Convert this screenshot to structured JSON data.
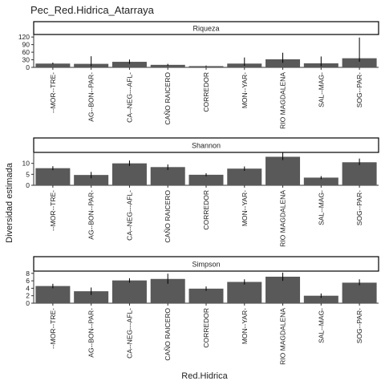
{
  "title": "Pec_Red.Hidrica_Atarraya",
  "xlabel": "Red.Hidrica",
  "ylabel": "Diversidad estimada",
  "colors": {
    "bar": "#595959",
    "error": "#000000",
    "axis": "#333333",
    "strip_bg": "#ffffff",
    "strip_border": "#000000"
  },
  "chart_data": {
    "type": "bar",
    "categories": [
      "--MOR--TRE-",
      "AG--BON--PAR-",
      "CA--NEG---AFL-",
      "CAÑO RAICERO",
      "CORREDOR",
      "MON--YAR-",
      "RIO MAGDALENA",
      "SAL--MAG-",
      "SOG--PAR-"
    ],
    "facets": [
      {
        "strip": "Riqueza",
        "ylim": [
          0,
          130
        ],
        "yticks": [
          0,
          30,
          60,
          90,
          120
        ],
        "values": [
          15,
          14,
          22,
          10,
          5,
          15,
          32,
          16,
          36
        ],
        "error_low": [
          12,
          4,
          14,
          6,
          3,
          6,
          18,
          4,
          22
        ],
        "error_high": [
          19,
          44,
          31,
          14,
          7,
          39,
          58,
          43,
          118
        ]
      },
      {
        "strip": "Shannon",
        "ylim": [
          0,
          15
        ],
        "yticks": [
          0,
          5,
          10
        ],
        "values": [
          7.8,
          4.7,
          10.0,
          8.3,
          4.8,
          7.6,
          13.0,
          3.5,
          10.5
        ],
        "error_low": [
          6.9,
          3.2,
          8.8,
          7.0,
          4.1,
          6.6,
          11.5,
          2.8,
          9.2
        ],
        "error_high": [
          8.7,
          6.1,
          11.3,
          9.5,
          5.5,
          8.6,
          15.0,
          4.2,
          12.2
        ]
      },
      {
        "strip": "Simpson",
        "ylim": [
          0,
          8.6
        ],
        "yticks": [
          0,
          2,
          4,
          6,
          8
        ],
        "values": [
          4.6,
          3.2,
          6.1,
          6.5,
          3.9,
          5.7,
          7.1,
          2.0,
          5.5
        ],
        "error_low": [
          4.0,
          2.2,
          5.5,
          5.2,
          3.3,
          5.0,
          6.0,
          1.4,
          4.8
        ],
        "error_high": [
          5.2,
          4.2,
          6.7,
          7.9,
          4.5,
          6.4,
          8.2,
          2.6,
          6.4
        ]
      }
    ]
  }
}
